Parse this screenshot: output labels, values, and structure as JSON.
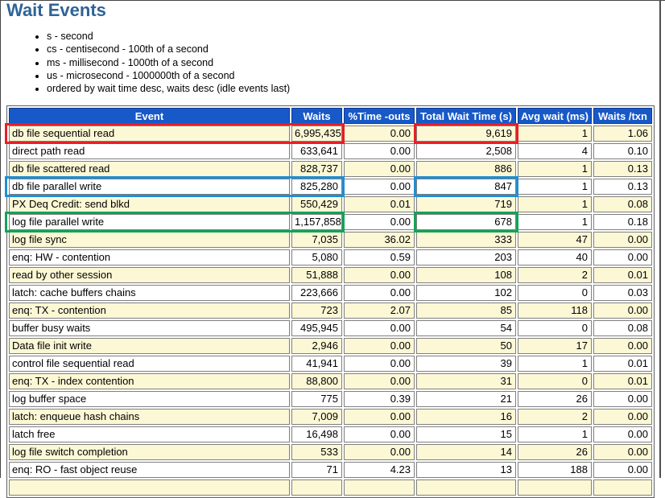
{
  "page": {
    "title": "Wait Events"
  },
  "legend": {
    "items": [
      "s - second",
      "cs - centisecond - 100th of a second",
      "ms - millisecond - 1000th of a second",
      "us - microsecond - 1000000th of a second",
      "ordered by wait time desc, waits desc (idle events last)"
    ]
  },
  "wait_events_table": {
    "columns": [
      "Event",
      "Waits",
      "%Time -outs",
      "Total Wait Time (s)",
      "Avg wait (ms)",
      "Waits /txn"
    ],
    "rows": [
      {
        "event": "db file sequential read",
        "waits": "6,995,435",
        "pct_timeouts": "0.00",
        "total_wait_time_s": "9,619",
        "avg_wait_ms": "1",
        "waits_per_txn": "1.06",
        "highlight": "red"
      },
      {
        "event": "direct path read",
        "waits": "633,641",
        "pct_timeouts": "0.00",
        "total_wait_time_s": "2,508",
        "avg_wait_ms": "4",
        "waits_per_txn": "0.10",
        "highlight": null
      },
      {
        "event": "db file scattered read",
        "waits": "828,737",
        "pct_timeouts": "0.00",
        "total_wait_time_s": "886",
        "avg_wait_ms": "1",
        "waits_per_txn": "0.13",
        "highlight": null
      },
      {
        "event": "db file parallel write",
        "waits": "825,280",
        "pct_timeouts": "0.00",
        "total_wait_time_s": "847",
        "avg_wait_ms": "1",
        "waits_per_txn": "0.13",
        "highlight": "blue"
      },
      {
        "event": "PX Deq Credit: send blkd",
        "waits": "550,429",
        "pct_timeouts": "0.01",
        "total_wait_time_s": "719",
        "avg_wait_ms": "1",
        "waits_per_txn": "0.08",
        "highlight": null
      },
      {
        "event": "log file parallel write",
        "waits": "1,157,858",
        "pct_timeouts": "0.00",
        "total_wait_time_s": "678",
        "avg_wait_ms": "1",
        "waits_per_txn": "0.18",
        "highlight": "green"
      },
      {
        "event": "log file sync",
        "waits": "7,035",
        "pct_timeouts": "36.02",
        "total_wait_time_s": "333",
        "avg_wait_ms": "47",
        "waits_per_txn": "0.00",
        "highlight": null
      },
      {
        "event": "enq: HW - contention",
        "waits": "5,080",
        "pct_timeouts": "0.59",
        "total_wait_time_s": "203",
        "avg_wait_ms": "40",
        "waits_per_txn": "0.00",
        "highlight": null
      },
      {
        "event": "read by other session",
        "waits": "51,888",
        "pct_timeouts": "0.00",
        "total_wait_time_s": "108",
        "avg_wait_ms": "2",
        "waits_per_txn": "0.01",
        "highlight": null
      },
      {
        "event": "latch: cache buffers chains",
        "waits": "223,666",
        "pct_timeouts": "0.00",
        "total_wait_time_s": "102",
        "avg_wait_ms": "0",
        "waits_per_txn": "0.03",
        "highlight": null
      },
      {
        "event": "enq: TX - contention",
        "waits": "723",
        "pct_timeouts": "2.07",
        "total_wait_time_s": "85",
        "avg_wait_ms": "118",
        "waits_per_txn": "0.00",
        "highlight": null
      },
      {
        "event": "buffer busy waits",
        "waits": "495,945",
        "pct_timeouts": "0.00",
        "total_wait_time_s": "54",
        "avg_wait_ms": "0",
        "waits_per_txn": "0.08",
        "highlight": null
      },
      {
        "event": "Data file init write",
        "waits": "2,946",
        "pct_timeouts": "0.00",
        "total_wait_time_s": "50",
        "avg_wait_ms": "17",
        "waits_per_txn": "0.00",
        "highlight": null
      },
      {
        "event": "control file sequential read",
        "waits": "41,941",
        "pct_timeouts": "0.00",
        "total_wait_time_s": "39",
        "avg_wait_ms": "1",
        "waits_per_txn": "0.01",
        "highlight": null
      },
      {
        "event": "enq: TX - index contention",
        "waits": "88,800",
        "pct_timeouts": "0.00",
        "total_wait_time_s": "31",
        "avg_wait_ms": "0",
        "waits_per_txn": "0.01",
        "highlight": null
      },
      {
        "event": "log buffer space",
        "waits": "775",
        "pct_timeouts": "0.39",
        "total_wait_time_s": "21",
        "avg_wait_ms": "26",
        "waits_per_txn": "0.00",
        "highlight": null
      },
      {
        "event": "latch: enqueue hash chains",
        "waits": "7,009",
        "pct_timeouts": "0.00",
        "total_wait_time_s": "16",
        "avg_wait_ms": "2",
        "waits_per_txn": "0.00",
        "highlight": null
      },
      {
        "event": "latch free",
        "waits": "16,498",
        "pct_timeouts": "0.00",
        "total_wait_time_s": "15",
        "avg_wait_ms": "1",
        "waits_per_txn": "0.00",
        "highlight": null
      },
      {
        "event": "log file switch completion",
        "waits": "533",
        "pct_timeouts": "0.00",
        "total_wait_time_s": "14",
        "avg_wait_ms": "26",
        "waits_per_txn": "0.00",
        "highlight": null
      },
      {
        "event": "enq: RO - fast object reuse",
        "waits": "71",
        "pct_timeouts": "4.23",
        "total_wait_time_s": "13",
        "avg_wait_ms": "188",
        "waits_per_txn": "0.00",
        "highlight": null
      }
    ],
    "highlight_colors": {
      "red": "#EC1C24",
      "blue": "#1E8FD5",
      "green": "#12A357"
    },
    "colors": {
      "header_bg": "#1759C8",
      "alt_row_bg": "#FCF8D5",
      "title_color": "#2E6397"
    }
  }
}
